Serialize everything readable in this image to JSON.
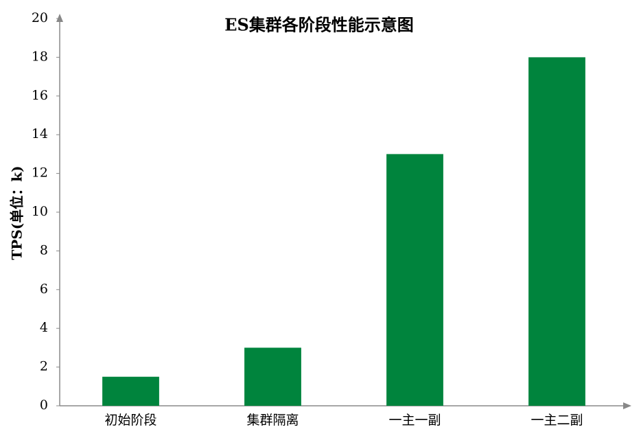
{
  "chart_data": {
    "type": "bar",
    "title": "ES集群各阶段性能示意图",
    "y_label": "TPS(单位：k)",
    "categories": [
      "初始阶段",
      "集群隔离",
      "一主一副",
      "一主二副"
    ],
    "values": [
      1.5,
      3,
      13,
      18
    ],
    "color": "#00843d",
    "ylim": [
      0,
      20
    ],
    "yticks": [
      0,
      2,
      4,
      6,
      8,
      10,
      12,
      14,
      16,
      18,
      20
    ],
    "grid": false
  }
}
